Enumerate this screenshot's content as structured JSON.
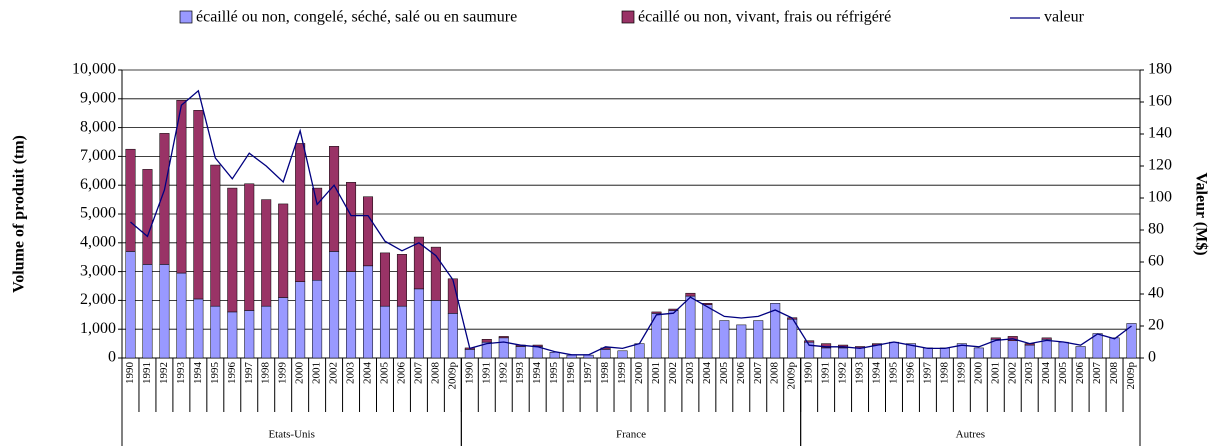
{
  "chart_data": {
    "type": "bar-line",
    "y_label": "Volume of produit (tm)",
    "y2_label": "Valeur (M$)",
    "group_labels": [
      "Etats-Unis",
      "France",
      "Autres"
    ],
    "categories": [
      "1990",
      "1991",
      "1992",
      "1993",
      "1994",
      "1995",
      "1996",
      "1997",
      "1998",
      "1999",
      "2000",
      "2001",
      "2002",
      "2003",
      "2004",
      "2005",
      "2006",
      "2007",
      "2008",
      "2009p",
      "1990",
      "1991",
      "1992",
      "1993",
      "1994",
      "1995",
      "1996",
      "1997",
      "1998",
      "1999",
      "2000",
      "2001",
      "2002",
      "2003",
      "2004",
      "2005",
      "2006",
      "2007",
      "2008",
      "2009p",
      "1990",
      "1991",
      "1992",
      "1993",
      "1994",
      "1995",
      "1996",
      "1997",
      "1998",
      "1999",
      "2000",
      "2001",
      "2002",
      "2003",
      "2004",
      "2005",
      "2006",
      "2007",
      "2008",
      "2009p"
    ],
    "ylim": [
      0,
      10000
    ],
    "yticks": [
      0,
      {
        "value": 1000,
        "label": "1,000"
      },
      {
        "value": 2000,
        "label": "2,000"
      },
      {
        "value": 3000,
        "label": "3,000"
      },
      {
        "value": 4000,
        "label": "4,000"
      },
      {
        "value": 5000,
        "label": "5,000"
      },
      {
        "value": 6000,
        "label": "6,000"
      },
      {
        "value": 7000,
        "label": "7,000"
      },
      {
        "value": 8000,
        "label": "8,000"
      },
      {
        "value": 9000,
        "label": "9,000"
      },
      {
        "value": 10000,
        "label": "10,000"
      }
    ],
    "y2lim": [
      0,
      180
    ],
    "y2ticks": [
      0,
      20,
      40,
      60,
      80,
      100,
      120,
      140,
      160,
      180
    ],
    "grid": true,
    "legend": "top",
    "series": [
      {
        "name": "écaillé ou non, congelé, séché, salé ou en saumure",
        "type": "bar",
        "color": "#9999ff",
        "values": [
          3700,
          3250,
          3250,
          2950,
          2050,
          1800,
          1600,
          1650,
          1800,
          2100,
          2650,
          2700,
          3700,
          3000,
          3200,
          1800,
          1800,
          2400,
          2000,
          1550,
          300,
          550,
          700,
          400,
          400,
          200,
          100,
          100,
          300,
          250,
          500,
          1550,
          1650,
          2150,
          1850,
          1300,
          1150,
          1300,
          1900,
          1350,
          550,
          350,
          350,
          350,
          450,
          550,
          500,
          350,
          350,
          500,
          350,
          650,
          600,
          450,
          650,
          550,
          400,
          850,
          700,
          1200
        ]
      },
      {
        "name": "écaillé ou non, vivant, frais ou réfrigéré",
        "type": "bar",
        "color": "#993366",
        "values": [
          3550,
          3300,
          4550,
          6000,
          6550,
          4900,
          4300,
          4400,
          3700,
          3250,
          4800,
          3200,
          3650,
          3100,
          2400,
          1850,
          1800,
          1800,
          1850,
          1200,
          50,
          100,
          50,
          50,
          50,
          0,
          0,
          0,
          50,
          0,
          0,
          50,
          50,
          100,
          50,
          0,
          0,
          0,
          0,
          50,
          50,
          150,
          100,
          50,
          50,
          0,
          0,
          0,
          0,
          0,
          0,
          50,
          150,
          50,
          50,
          0,
          0,
          0,
          0,
          0
        ]
      },
      {
        "name": "valeur",
        "type": "line",
        "axis": "y2",
        "color": "#000080",
        "values": [
          85,
          76,
          105,
          158,
          167,
          125,
          112,
          128,
          120,
          110,
          142,
          96,
          108,
          89,
          89,
          73,
          67,
          72,
          64,
          49,
          6,
          9,
          10,
          8,
          7,
          4,
          2,
          2,
          7,
          6,
          9,
          27,
          28,
          38,
          32,
          26,
          25,
          26,
          30,
          25,
          8,
          7,
          7,
          6,
          8,
          10,
          8,
          6,
          6,
          8,
          7,
          11,
          12,
          9,
          11,
          10,
          8,
          15,
          12,
          20
        ]
      }
    ]
  }
}
